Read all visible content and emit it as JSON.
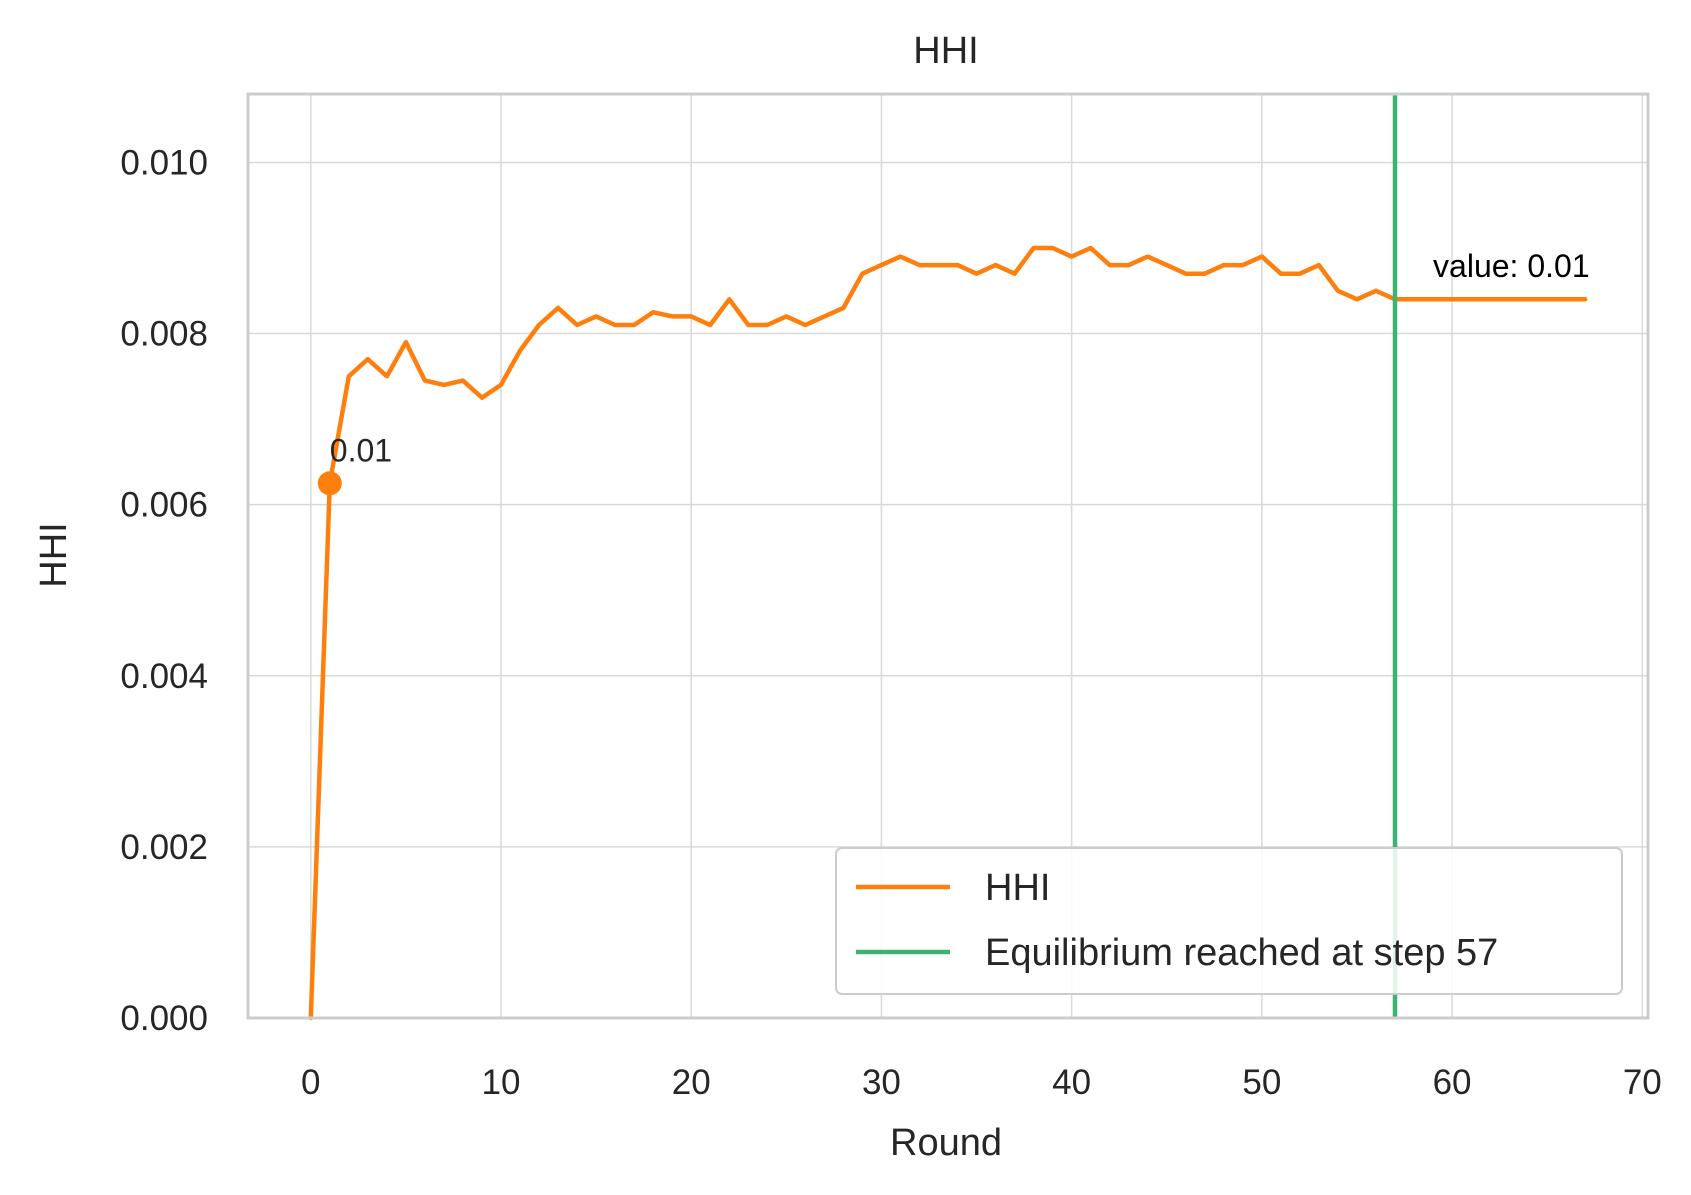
{
  "chart_data": {
    "type": "line",
    "title": "HHI",
    "xlabel": "Round",
    "ylabel": "HHI",
    "xlim": [
      -3.3,
      70.3
    ],
    "ylim": [
      0,
      0.0108
    ],
    "xticks": [
      0,
      10,
      20,
      30,
      40,
      50,
      60,
      70
    ],
    "yticks": [
      0.0,
      0.002,
      0.004,
      0.006,
      0.008,
      0.01
    ],
    "xtick_labels": [
      "0",
      "10",
      "20",
      "30",
      "40",
      "50",
      "60",
      "70"
    ],
    "ytick_labels": [
      "0.000",
      "0.002",
      "0.004",
      "0.006",
      "0.008",
      "0.010"
    ],
    "grid": true,
    "legend_position": "lower-right",
    "series": [
      {
        "name": "HHI",
        "color": "#ff7f0e",
        "x": [
          0,
          1,
          2,
          3,
          4,
          5,
          6,
          7,
          8,
          9,
          10,
          11,
          12,
          13,
          14,
          15,
          16,
          17,
          18,
          19,
          20,
          21,
          22,
          23,
          24,
          25,
          26,
          27,
          28,
          29,
          30,
          31,
          32,
          33,
          34,
          35,
          36,
          37,
          38,
          39,
          40,
          41,
          42,
          43,
          44,
          45,
          46,
          47,
          48,
          49,
          50,
          51,
          52,
          53,
          54,
          55,
          56,
          57,
          58,
          59,
          60,
          61,
          62,
          63,
          64,
          65,
          66,
          67
        ],
        "y": [
          0.0,
          0.00625,
          0.0075,
          0.0077,
          0.0075,
          0.0079,
          0.00745,
          0.0074,
          0.00745,
          0.00725,
          0.0074,
          0.0078,
          0.0081,
          0.0083,
          0.0081,
          0.0082,
          0.0081,
          0.0081,
          0.00825,
          0.0082,
          0.0082,
          0.0081,
          0.0084,
          0.0081,
          0.0081,
          0.0082,
          0.0081,
          0.0082,
          0.0083,
          0.0087,
          0.0088,
          0.0089,
          0.0088,
          0.0088,
          0.0088,
          0.0087,
          0.0088,
          0.0087,
          0.009,
          0.009,
          0.0089,
          0.009,
          0.0088,
          0.0088,
          0.0089,
          0.0088,
          0.0087,
          0.0087,
          0.0088,
          0.0088,
          0.0089,
          0.0087,
          0.0087,
          0.0088,
          0.0085,
          0.0084,
          0.0085,
          0.0084,
          0.0084,
          0.0084,
          0.0084,
          0.0084,
          0.0084,
          0.0084,
          0.0084,
          0.0084,
          0.0084,
          0.0084
        ]
      },
      {
        "name": "Equilibrium reached at step 57",
        "color": "#3cb371",
        "type": "vline",
        "x": 57
      }
    ],
    "marker": {
      "x": 1,
      "y": 0.00625,
      "label": "0.01"
    },
    "annotations": [
      {
        "text": "value: 0.01",
        "x": 59,
        "y": 0.0088
      }
    ]
  }
}
